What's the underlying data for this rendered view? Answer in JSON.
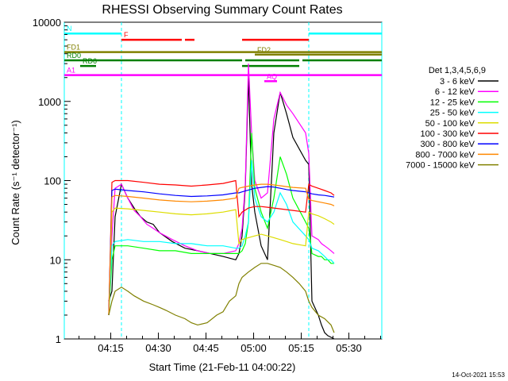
{
  "chart_data": {
    "type": "line",
    "title": "RHESSI Observing Summary Count Rates",
    "xlabel": "Start Time (21-Feb-11 04:00:22)",
    "ylabel": "Count Rate (s⁻¹ detector⁻¹)",
    "y_scale": "log",
    "ylim": [
      1,
      10000
    ],
    "xlim_minutes": [
      0,
      100
    ],
    "x_ticks": [
      "04:15",
      "04:30",
      "04:45",
      "05:00",
      "05:15",
      "05:30"
    ],
    "y_ticks": [
      "1",
      "10",
      "100",
      "1000",
      "10000"
    ],
    "footer": "14-Oct-2021 15:53",
    "legend": {
      "header": "Det 1,3,4,5,6,9",
      "placement": "right"
    },
    "series": [
      {
        "name": "3 - 6 keV",
        "color": "#000000",
        "x": [
          14,
          15,
          16,
          18,
          20,
          22,
          24,
          26,
          28,
          30,
          34,
          38,
          42,
          46,
          50,
          54,
          55,
          56,
          57,
          58,
          59,
          60,
          62,
          64,
          66,
          68,
          70,
          72,
          76,
          77,
          78,
          80,
          81,
          82,
          83,
          84,
          85
        ],
        "y": [
          3,
          4,
          35,
          90,
          60,
          45,
          35,
          30,
          28,
          22,
          17,
          14,
          13,
          12,
          11,
          10,
          12,
          20,
          80,
          2000,
          90,
          40,
          15,
          10,
          400,
          1300,
          700,
          350,
          180,
          160,
          3,
          2,
          1.5,
          1.2,
          1.1,
          1.05,
          1
        ]
      },
      {
        "name": "6 - 12 keV",
        "color": "#ff00ff",
        "x": [
          14,
          15,
          16,
          18,
          20,
          22,
          24,
          26,
          28,
          30,
          34,
          38,
          42,
          46,
          50,
          54,
          55,
          56,
          57,
          58,
          59,
          60,
          62,
          64,
          66,
          68,
          70,
          72,
          76,
          77,
          78,
          80,
          81,
          82,
          83,
          84,
          85
        ],
        "y": [
          2,
          20,
          80,
          90,
          60,
          42,
          35,
          28,
          25,
          22,
          18,
          15,
          13,
          12,
          12,
          13,
          16,
          25,
          90,
          3000,
          400,
          100,
          60,
          70,
          600,
          1300,
          900,
          700,
          400,
          220,
          20,
          18,
          16,
          15,
          14,
          13,
          12
        ]
      },
      {
        "name": "12 - 25 keV",
        "color": "#00ff00",
        "x": [
          14,
          15,
          16,
          20,
          25,
          30,
          35,
          40,
          45,
          50,
          54,
          55,
          56,
          57,
          58,
          59,
          60,
          62,
          64,
          66,
          68,
          70,
          72,
          76,
          77,
          78,
          80,
          81,
          82,
          83,
          84,
          85
        ],
        "y": [
          2,
          10,
          15,
          15,
          14,
          13,
          13,
          12,
          12,
          12,
          12,
          12,
          13,
          16,
          30,
          400,
          80,
          40,
          25,
          60,
          200,
          120,
          60,
          30,
          25,
          12,
          11,
          11,
          10,
          10,
          9,
          9
        ]
      },
      {
        "name": "25 - 50 keV",
        "color": "#00ffff",
        "x": [
          14,
          15,
          16,
          20,
          25,
          30,
          35,
          40,
          45,
          50,
          54,
          55,
          56,
          57,
          58,
          59,
          60,
          62,
          64,
          66,
          68,
          70,
          72,
          76,
          77,
          78,
          80,
          81,
          82,
          83,
          84,
          85
        ],
        "y": [
          2,
          15,
          17,
          18,
          17,
          17,
          16,
          16,
          15,
          15,
          14,
          14,
          15,
          20,
          30,
          180,
          60,
          35,
          30,
          40,
          70,
          50,
          30,
          20,
          18,
          14,
          13,
          12,
          11,
          10,
          10,
          9
        ]
      },
      {
        "name": "50 - 100 keV",
        "color": "#dddd00",
        "x": [
          14,
          15,
          16,
          20,
          25,
          30,
          35,
          40,
          45,
          50,
          54,
          55,
          56,
          58,
          60,
          62,
          64,
          66,
          68,
          70,
          72,
          76,
          77,
          78,
          80,
          82,
          84,
          85
        ],
        "y": [
          2,
          40,
          45,
          44,
          42,
          40,
          38,
          37,
          38,
          40,
          43,
          16,
          18,
          19,
          20,
          21,
          20,
          19,
          18,
          17,
          16,
          15,
          40,
          38,
          36,
          33,
          30,
          28
        ]
      },
      {
        "name": "100 - 300 keV",
        "color": "#ff0000",
        "x": [
          14,
          15,
          16,
          20,
          25,
          30,
          35,
          40,
          45,
          50,
          54,
          55,
          56,
          58,
          60,
          62,
          64,
          66,
          68,
          70,
          72,
          76,
          77,
          78,
          80,
          82,
          84,
          85
        ],
        "y": [
          2,
          95,
          100,
          100,
          95,
          90,
          88,
          85,
          88,
          92,
          100,
          35,
          40,
          45,
          47,
          47,
          46,
          45,
          44,
          43,
          42,
          40,
          90,
          85,
          80,
          75,
          70,
          65
        ]
      },
      {
        "name": "300 - 800 keV",
        "color": "#0000ff",
        "x": [
          14,
          15,
          16,
          20,
          25,
          30,
          35,
          40,
          45,
          50,
          54,
          55,
          56,
          58,
          60,
          62,
          64,
          66,
          68,
          70,
          72,
          76,
          77,
          78,
          80,
          82,
          84,
          85
        ],
        "y": [
          2,
          75,
          78,
          75,
          72,
          68,
          65,
          63,
          64,
          66,
          70,
          70,
          72,
          76,
          80,
          82,
          84,
          83,
          80,
          77,
          75,
          72,
          70,
          68,
          66,
          65,
          63,
          62
        ]
      },
      {
        "name": "800 - 7000 keV",
        "color": "#ff8800",
        "x": [
          14,
          15,
          16,
          20,
          25,
          30,
          35,
          40,
          45,
          50,
          54,
          55,
          56,
          58,
          60,
          62,
          64,
          66,
          68,
          70,
          72,
          76,
          77,
          78,
          80,
          82,
          84,
          85
        ],
        "y": [
          2,
          62,
          65,
          63,
          60,
          57,
          55,
          54,
          55,
          57,
          60,
          80,
          82,
          85,
          88,
          90,
          90,
          88,
          86,
          84,
          82,
          80,
          58,
          56,
          54,
          52,
          50,
          48
        ]
      },
      {
        "name": "7000 - 15000 keV",
        "color": "#808000",
        "x": [
          14,
          15,
          16,
          18,
          20,
          22,
          25,
          28,
          30,
          32,
          35,
          38,
          40,
          42,
          45,
          48,
          50,
          52,
          54,
          55,
          56,
          58,
          60,
          62,
          64,
          66,
          68,
          70,
          72,
          74,
          76,
          77,
          78,
          80,
          82,
          84,
          85
        ],
        "y": [
          2,
          3,
          4,
          4.5,
          4,
          3.5,
          3,
          2.7,
          2.5,
          2.3,
          2,
          1.8,
          1.6,
          1.5,
          1.6,
          2,
          2.2,
          3,
          3.5,
          5,
          6,
          7,
          8,
          9,
          9,
          8.5,
          8,
          7,
          6,
          5,
          4,
          3,
          2.5,
          2,
          1.8,
          1.5,
          1.2
        ]
      }
    ],
    "night_intervals_minutes": [
      [
        0,
        18
      ],
      [
        77,
        100
      ]
    ],
    "state_bars": [
      {
        "label": "N",
        "color": "#00ffff",
        "y": 7200,
        "segments": [
          [
            0,
            18
          ],
          [
            77,
            100
          ]
        ]
      },
      {
        "label": "F",
        "color": "#ff0000",
        "y": 6000,
        "segments": [
          [
            18,
            37
          ],
          [
            38,
            41
          ],
          [
            56,
            77
          ]
        ]
      },
      {
        "label": "FD1",
        "color": "#808000",
        "y": 4200,
        "segments": [
          [
            0,
            100
          ]
        ]
      },
      {
        "label": "FD2",
        "color": "#808000",
        "y": 3900,
        "segments": [
          [
            60,
            100
          ]
        ]
      },
      {
        "label": "RD0",
        "color": "#008000",
        "y": 3300,
        "segments": [
          [
            0,
            56
          ],
          [
            57,
            74
          ],
          [
            75,
            100
          ]
        ]
      },
      {
        "label": "RD6",
        "color": "#008000",
        "y": 2800,
        "segments": [
          [
            5,
            10
          ],
          [
            56,
            74
          ]
        ]
      },
      {
        "label": "A1",
        "color": "#ff00ff",
        "y": 2150,
        "segments": [
          [
            0,
            100
          ]
        ]
      },
      {
        "label": "AQ",
        "color": "#ff00ff",
        "y": 1800,
        "segments": [
          [
            63,
            67
          ]
        ]
      }
    ]
  }
}
